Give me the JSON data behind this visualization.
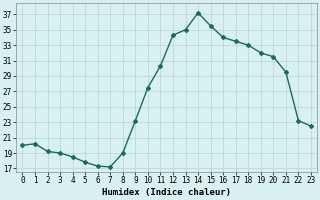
{
  "x": [
    0,
    1,
    2,
    3,
    4,
    5,
    6,
    7,
    8,
    9,
    10,
    11,
    12,
    13,
    14,
    15,
    16,
    17,
    18,
    19,
    20,
    21,
    22,
    23
  ],
  "y": [
    20.0,
    20.2,
    19.2,
    19.0,
    18.5,
    17.8,
    17.3,
    17.2,
    19.0,
    23.2,
    27.5,
    30.3,
    34.3,
    35.0,
    37.2,
    35.5,
    34.0,
    33.5,
    33.0,
    32.0,
    31.5,
    29.5,
    23.2,
    22.5
  ],
  "line_color": "#1a6b5a",
  "marker": "D",
  "markersize": 2,
  "linewidth": 1.0,
  "bg_color": "#d8f0f0",
  "grid_color": "#b8d4d4",
  "xlabel": "Humidex (Indice chaleur)",
  "ylabel_ticks": [
    17,
    19,
    21,
    23,
    25,
    27,
    29,
    31,
    33,
    35,
    37
  ],
  "xlim": [
    -0.5,
    23.5
  ],
  "ylim": [
    16.5,
    38.5
  ],
  "xticks": [
    0,
    1,
    2,
    3,
    4,
    5,
    6,
    7,
    8,
    9,
    10,
    11,
    12,
    13,
    14,
    15,
    16,
    17,
    18,
    19,
    20,
    21,
    22,
    23
  ],
  "label_fontsize": 6.5,
  "tick_fontsize": 5.5
}
